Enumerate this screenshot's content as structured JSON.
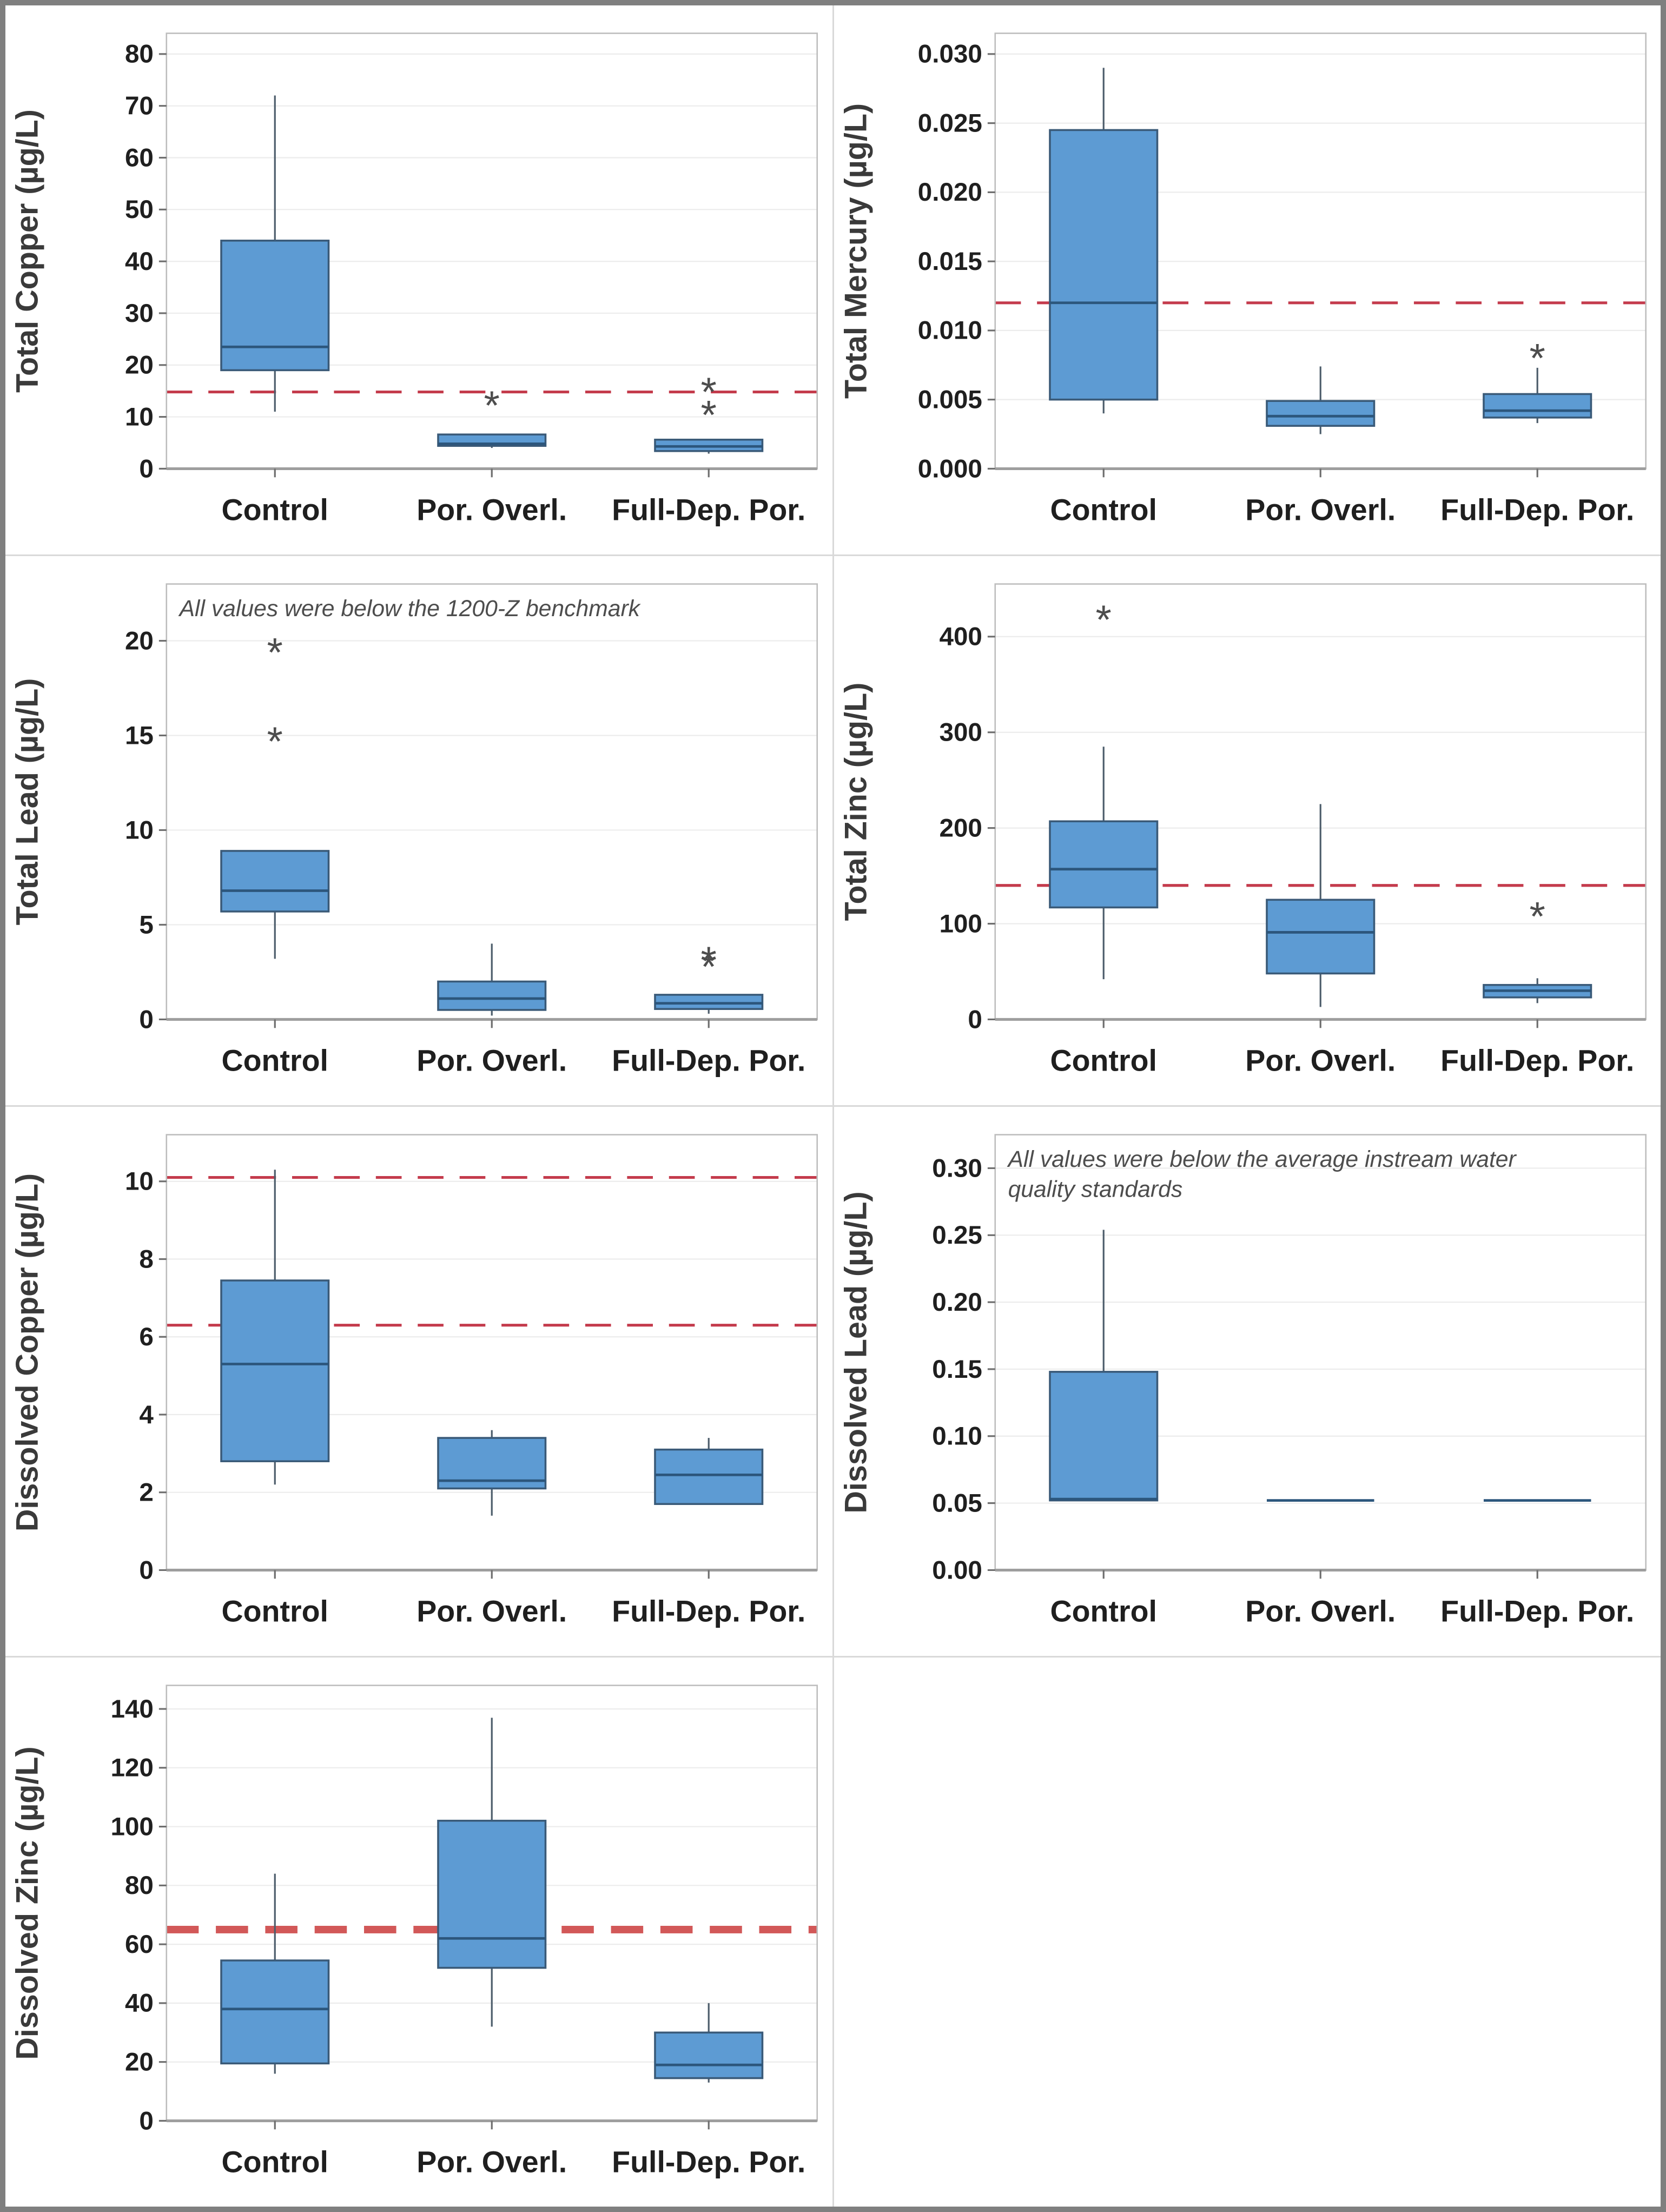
{
  "figure": {
    "background": "#ffffff",
    "outer_border_color": "#7f7f7f",
    "separator_color": "#d9d9d9",
    "box_fill": "#5d9bd3",
    "box_stroke": "#3a5a78",
    "median_color": "#2c567c",
    "whisker_color": "#4d5d6b",
    "outlier_color": "#4d4d4d",
    "outlier_glyph": "*",
    "grid_color": "#ececec",
    "frame_color": "#bdbdbd",
    "axis_color": "#9e9e9e",
    "tick_color": "#6e6e6e",
    "tick_label_color": "#1f1f1f",
    "ylabel_color": "#3a3a3a",
    "category_label_color": "#1f1f1f",
    "annotation_color": "#4d4d4d",
    "reference_line_color": "#c43b4c",
    "reference_line_thick_color": "#d25858"
  },
  "chart_data": [
    {
      "id": "total-copper",
      "type": "box",
      "ylabel": "Total Copper (µg/L)",
      "ylim": [
        0,
        84
      ],
      "yticks": [
        0,
        10,
        20,
        30,
        40,
        50,
        60,
        70,
        80
      ],
      "ytick_labels": [
        "0",
        "10",
        "20",
        "30",
        "40",
        "50",
        "60",
        "70",
        "80"
      ],
      "categories": [
        "Control",
        "Por. Overl.",
        "Full-Dep. Por."
      ],
      "annotation_lines": [],
      "reference_lines": [
        {
          "y": 14.8,
          "style": "thin"
        }
      ],
      "boxes": [
        {
          "whisker_low": 11,
          "q1": 19,
          "median": 23.5,
          "q3": 44,
          "whisker_high": 72,
          "outliers": []
        },
        {
          "whisker_low": 4.0,
          "q1": 4.4,
          "median": 4.8,
          "q3": 6.6,
          "whisker_high": 6.6,
          "outliers": [
            13
          ]
        },
        {
          "whisker_low": 2.9,
          "q1": 3.4,
          "median": 4.3,
          "q3": 5.6,
          "whisker_high": 5.6,
          "outliers": [
            11.2,
            15.6
          ]
        }
      ]
    },
    {
      "id": "total-mercury",
      "type": "box",
      "ylabel": "Total Mercury (µg/L)",
      "ylim": [
        0,
        0.0315
      ],
      "yticks": [
        0,
        0.005,
        0.01,
        0.015,
        0.02,
        0.025,
        0.03
      ],
      "ytick_labels": [
        "0.000",
        "0.005",
        "0.010",
        "0.015",
        "0.020",
        "0.025",
        "0.030"
      ],
      "categories": [
        "Control",
        "Por. Overl.",
        "Full-Dep. Por."
      ],
      "annotation_lines": [],
      "reference_lines": [
        {
          "y": 0.012,
          "style": "thin"
        }
      ],
      "boxes": [
        {
          "whisker_low": 0.004,
          "q1": 0.005,
          "median": 0.012,
          "q3": 0.0245,
          "whisker_high": 0.029,
          "outliers": []
        },
        {
          "whisker_low": 0.0025,
          "q1": 0.0031,
          "median": 0.0038,
          "q3": 0.0049,
          "whisker_high": 0.0074,
          "outliers": []
        },
        {
          "whisker_low": 0.0033,
          "q1": 0.0037,
          "median": 0.0042,
          "q3": 0.0054,
          "whisker_high": 0.0073,
          "outliers": [
            0.0083
          ]
        }
      ]
    },
    {
      "id": "total-lead",
      "type": "box",
      "ylabel": "Total Lead (µg/L)",
      "ylim": [
        0,
        23
      ],
      "yticks": [
        0,
        5,
        10,
        15,
        20
      ],
      "ytick_labels": [
        "0",
        "5",
        "10",
        "15",
        "20"
      ],
      "categories": [
        "Control",
        "Por. Overl.",
        "Full-Dep. Por."
      ],
      "annotation_lines": [
        "All values were below the 1200-Z benchmark"
      ],
      "reference_lines": [],
      "boxes": [
        {
          "whisker_low": 3.2,
          "q1": 5.7,
          "median": 6.8,
          "q3": 8.9,
          "whisker_high": 8.9,
          "outliers": [
            14.9,
            19.6
          ]
        },
        {
          "whisker_low": 0.2,
          "q1": 0.5,
          "median": 1.1,
          "q3": 2.0,
          "whisker_high": 4.0,
          "outliers": []
        },
        {
          "whisker_low": 0.3,
          "q1": 0.55,
          "median": 0.85,
          "q3": 1.3,
          "whisker_high": 1.3,
          "outliers": [
            3.0,
            3.3
          ]
        }
      ]
    },
    {
      "id": "total-zinc",
      "type": "box",
      "ylabel": "Total Zinc (µg/L)",
      "ylim": [
        0,
        455
      ],
      "yticks": [
        0,
        100,
        200,
        300,
        400
      ],
      "ytick_labels": [
        "0",
        "100",
        "200",
        "300",
        "400"
      ],
      "categories": [
        "Control",
        "Por. Overl.",
        "Full-Dep. Por."
      ],
      "annotation_lines": [],
      "reference_lines": [
        {
          "y": 140,
          "style": "thin"
        }
      ],
      "boxes": [
        {
          "whisker_low": 42,
          "q1": 117,
          "median": 157,
          "q3": 207,
          "whisker_high": 285,
          "outliers": [
            422
          ]
        },
        {
          "whisker_low": 13,
          "q1": 48,
          "median": 91,
          "q3": 125,
          "whisker_high": 225,
          "outliers": []
        },
        {
          "whisker_low": 17,
          "q1": 23,
          "median": 30,
          "q3": 36,
          "whisker_high": 43,
          "outliers": [
            112
          ]
        }
      ]
    },
    {
      "id": "dissolved-copper",
      "type": "box",
      "ylabel": "Dissolved Copper (µg/L)",
      "ylim": [
        0,
        11.2
      ],
      "yticks": [
        0,
        2,
        4,
        6,
        8,
        10
      ],
      "ytick_labels": [
        "0",
        "2",
        "4",
        "6",
        "8",
        "10"
      ],
      "categories": [
        "Control",
        "Por. Overl.",
        "Full-Dep. Por."
      ],
      "annotation_lines": [],
      "reference_lines": [
        {
          "y": 10.1,
          "style": "thin"
        },
        {
          "y": 6.3,
          "style": "thin"
        }
      ],
      "boxes": [
        {
          "whisker_low": 2.2,
          "q1": 2.8,
          "median": 5.3,
          "q3": 7.45,
          "whisker_high": 10.3,
          "outliers": []
        },
        {
          "whisker_low": 1.4,
          "q1": 2.1,
          "median": 2.3,
          "q3": 3.4,
          "whisker_high": 3.6,
          "outliers": []
        },
        {
          "whisker_low": 1.7,
          "q1": 1.7,
          "median": 2.45,
          "q3": 3.1,
          "whisker_high": 3.4,
          "outliers": []
        }
      ]
    },
    {
      "id": "dissolved-lead",
      "type": "box",
      "ylabel": "Dissolved Lead (µg/L)",
      "ylim": [
        0,
        0.325
      ],
      "yticks": [
        0,
        0.05,
        0.1,
        0.15,
        0.2,
        0.25,
        0.3
      ],
      "ytick_labels": [
        "0.00",
        "0.05",
        "0.10",
        "0.15",
        "0.20",
        "0.25",
        "0.30"
      ],
      "categories": [
        "Control",
        "Por. Overl.",
        "Full-Dep. Por."
      ],
      "annotation_lines": [
        "All values were below the average instream water",
        "quality standards"
      ],
      "reference_lines": [],
      "boxes": [
        {
          "whisker_low": 0.052,
          "q1": 0.052,
          "median": 0.053,
          "q3": 0.148,
          "whisker_high": 0.254,
          "outliers": []
        },
        {
          "whisker_low": 0.052,
          "q1": 0.052,
          "median": 0.052,
          "q3": 0.052,
          "whisker_high": 0.052,
          "outliers": []
        },
        {
          "whisker_low": 0.052,
          "q1": 0.052,
          "median": 0.052,
          "q3": 0.052,
          "whisker_high": 0.052,
          "outliers": []
        }
      ]
    },
    {
      "id": "dissolved-zinc",
      "type": "box",
      "ylabel": "Dissolved Zinc (µg/L)",
      "ylim": [
        0,
        148
      ],
      "yticks": [
        0,
        20,
        40,
        60,
        80,
        100,
        120,
        140
      ],
      "ytick_labels": [
        "0",
        "20",
        "40",
        "60",
        "80",
        "100",
        "120",
        "140"
      ],
      "categories": [
        "Control",
        "Por. Overl.",
        "Full-Dep. Por."
      ],
      "annotation_lines": [],
      "reference_lines": [
        {
          "y": 65,
          "style": "thick"
        }
      ],
      "boxes": [
        {
          "whisker_low": 16,
          "q1": 19.5,
          "median": 38,
          "q3": 54.5,
          "whisker_high": 84,
          "outliers": []
        },
        {
          "whisker_low": 32,
          "q1": 52,
          "median": 62,
          "q3": 102,
          "whisker_high": 137,
          "outliers": []
        },
        {
          "whisker_low": 13,
          "q1": 14.5,
          "median": 19,
          "q3": 30,
          "whisker_high": 40,
          "outliers": []
        }
      ]
    }
  ]
}
